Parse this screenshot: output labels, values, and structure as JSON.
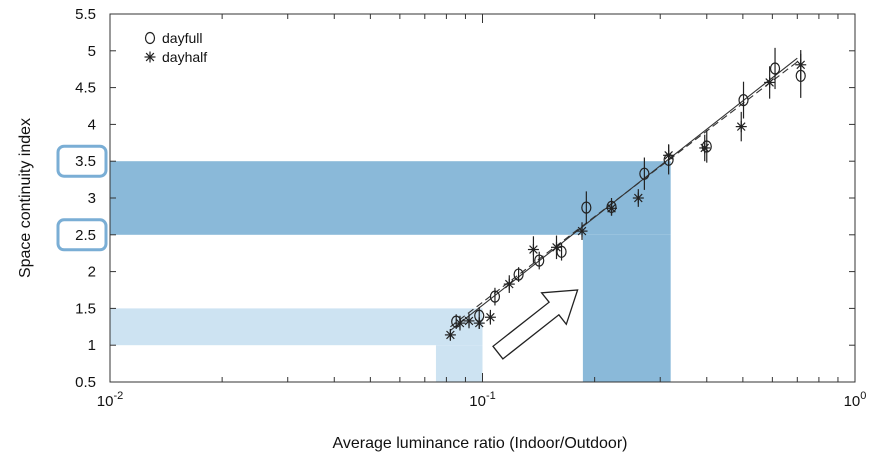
{
  "chart_data": {
    "type": "scatter",
    "xscale": "log",
    "xlim": [
      0.01,
      1
    ],
    "ylim": [
      0.5,
      5.5
    ],
    "xlabel": "Average luminance ratio (Indoor/Outdoor)",
    "ylabel": "Space continuity index",
    "xticks": [
      {
        "value": 0.01,
        "base": "10",
        "exp": "-2"
      },
      {
        "value": 0.1,
        "base": "10",
        "exp": "-1"
      },
      {
        "value": 1,
        "base": "10",
        "exp": "0"
      }
    ],
    "yticks": [
      "0.5",
      "1",
      "1.5",
      "2",
      "2.5",
      "3",
      "3.5",
      "4",
      "4.5",
      "5",
      "5.5"
    ],
    "highlighted_yticks": [
      "2.5",
      "3.5"
    ],
    "legend_position": "top-left",
    "series": [
      {
        "name": "dayfull",
        "marker": "circle",
        "points": [
          {
            "x": 0.085,
            "y": 1.32,
            "err": 0.1
          },
          {
            "x": 0.098,
            "y": 1.4,
            "err": 0.12
          },
          {
            "x": 0.108,
            "y": 1.66,
            "err": 0.12
          },
          {
            "x": 0.125,
            "y": 1.96,
            "err": 0.1
          },
          {
            "x": 0.142,
            "y": 2.15,
            "err": 0.12
          },
          {
            "x": 0.163,
            "y": 2.27,
            "err": 0.12
          },
          {
            "x": 0.19,
            "y": 2.87,
            "err": 0.22
          },
          {
            "x": 0.222,
            "y": 2.88,
            "err": 0.12
          },
          {
            "x": 0.272,
            "y": 3.33,
            "err": 0.22
          },
          {
            "x": 0.316,
            "y": 3.52,
            "err": 0.2
          },
          {
            "x": 0.4,
            "y": 3.7,
            "err": 0.22
          },
          {
            "x": 0.502,
            "y": 4.33,
            "err": 0.25
          },
          {
            "x": 0.61,
            "y": 4.76,
            "err": 0.28
          },
          {
            "x": 0.715,
            "y": 4.66,
            "err": 0.3
          }
        ]
      },
      {
        "name": "dayhalf",
        "marker": "asterisk",
        "points": [
          {
            "x": 0.082,
            "y": 1.14,
            "err": 0.08
          },
          {
            "x": 0.087,
            "y": 1.3,
            "err": 0.1
          },
          {
            "x": 0.092,
            "y": 1.33,
            "err": 0.1
          },
          {
            "x": 0.098,
            "y": 1.3,
            "err": 0.08
          },
          {
            "x": 0.105,
            "y": 1.38,
            "err": 0.1
          },
          {
            "x": 0.118,
            "y": 1.83,
            "err": 0.12
          },
          {
            "x": 0.137,
            "y": 2.3,
            "err": 0.18
          },
          {
            "x": 0.158,
            "y": 2.33,
            "err": 0.16
          },
          {
            "x": 0.185,
            "y": 2.55,
            "err": 0.12
          },
          {
            "x": 0.222,
            "y": 2.86,
            "err": 0.1
          },
          {
            "x": 0.262,
            "y": 3.0,
            "err": 0.12
          },
          {
            "x": 0.316,
            "y": 3.58,
            "err": 0.15
          },
          {
            "x": 0.395,
            "y": 3.68,
            "err": 0.18
          },
          {
            "x": 0.495,
            "y": 3.97,
            "err": 0.2
          },
          {
            "x": 0.59,
            "y": 4.57,
            "err": 0.22
          },
          {
            "x": 0.715,
            "y": 4.81,
            "err": 0.2
          }
        ]
      }
    ],
    "fit_lines": [
      {
        "style": "solid",
        "x": [
          0.082,
          0.7
        ],
        "y": [
          1.2,
          4.9
        ]
      },
      {
        "style": "dashed",
        "x": [
          0.082,
          0.7
        ],
        "y": [
          1.25,
          4.85
        ]
      }
    ],
    "highlight_regions": [
      {
        "orient": "horizontal",
        "shade": "dark",
        "x": [
          0.01,
          0.32
        ],
        "y": [
          2.5,
          3.5
        ]
      },
      {
        "orient": "vertical",
        "shade": "dark",
        "x": [
          0.186,
          0.32
        ],
        "y": [
          0.5,
          2.5
        ]
      },
      {
        "orient": "horizontal",
        "shade": "light",
        "x": [
          0.01,
          0.1
        ],
        "y": [
          1.0,
          1.5
        ]
      },
      {
        "orient": "vertical",
        "shade": "light",
        "x": [
          0.075,
          0.1
        ],
        "y": [
          0.5,
          1.0
        ]
      }
    ],
    "arrow_annotation": {
      "direction": "up-right",
      "from": [
        0.11,
        0.9
      ],
      "to": [
        0.18,
        1.75
      ]
    },
    "colors": {
      "dark_band": "#8ab9d9",
      "light_band": "#cde3f2",
      "highlight_box": "#7aaed5",
      "marker": "#222222"
    }
  }
}
